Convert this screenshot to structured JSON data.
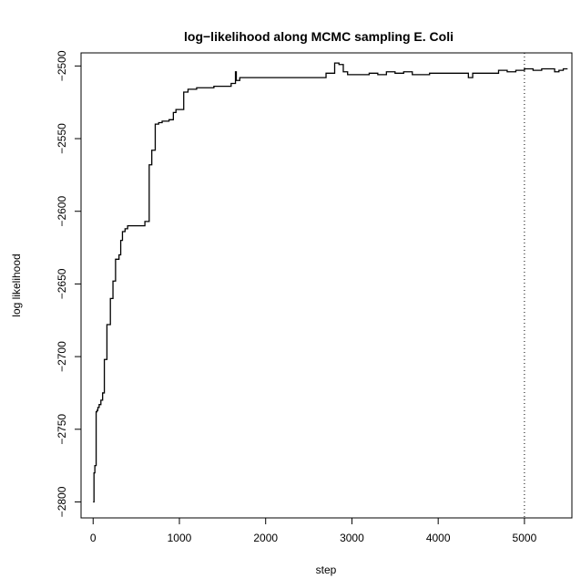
{
  "chart_data": {
    "type": "line",
    "title": "log−likelihood along MCMC sampling E. Coli",
    "xlabel": "step",
    "ylabel": "log likelihood",
    "xlim": [
      -140,
      5550
    ],
    "ylim": [
      -2811,
      -2491
    ],
    "x_ticks": [
      0,
      1000,
      2000,
      3000,
      4000,
      5000
    ],
    "x_tick_labels": [
      "0",
      "1000",
      "2000",
      "3000",
      "4000",
      "5000"
    ],
    "y_ticks": [
      -2500,
      -2550,
      -2600,
      -2650,
      -2700,
      -2750,
      -2800
    ],
    "y_tick_labels": [
      "−2500",
      "−2550",
      "−2600",
      "−2650",
      "−2700",
      "−2750",
      "−2800"
    ],
    "grid": false,
    "step_line": true,
    "reference_lines": [
      {
        "axis": "x",
        "value": 5000,
        "style": "dotted"
      }
    ],
    "series": [
      {
        "x": [
          0,
          10,
          20,
          35,
          45,
          55,
          70,
          90,
          110,
          130,
          160,
          200,
          230,
          260,
          300,
          320,
          340,
          370,
          400,
          500,
          600,
          650,
          680,
          700,
          720,
          760,
          800,
          880,
          930,
          960,
          1000,
          1050,
          1100,
          1200,
          1300,
          1400,
          1500,
          1600,
          1650,
          1660,
          1680,
          1700,
          1800,
          1900,
          2000,
          2200,
          2400,
          2600,
          2700,
          2800,
          2850,
          2900,
          2950,
          3000,
          3200,
          3300,
          3400,
          3500,
          3600,
          3700,
          3800,
          3900,
          4000,
          4100,
          4200,
          4300,
          4350,
          4400,
          4600,
          4700,
          4800,
          4900,
          5000,
          5050,
          5100,
          5200,
          5300,
          5350,
          5400,
          5450,
          5500
        ],
        "y": [
          -2800,
          -2780,
          -2775,
          -2738,
          -2737,
          -2735,
          -2733,
          -2730,
          -2725,
          -2702,
          -2678,
          -2660,
          -2648,
          -2633,
          -2630,
          -2620,
          -2614,
          -2612,
          -2610,
          -2610,
          -2607,
          -2568,
          -2558,
          -2558,
          -2540,
          -2539,
          -2538,
          -2537,
          -2532,
          -2530,
          -2530,
          -2518,
          -2516,
          -2515,
          -2515,
          -2514,
          -2514,
          -2512,
          -2504,
          -2510,
          -2510,
          -2508,
          -2508,
          -2508,
          -2508,
          -2508,
          -2508,
          -2508,
          -2505,
          -2498,
          -2499,
          -2504,
          -2506,
          -2506,
          -2505,
          -2506,
          -2504,
          -2505,
          -2504,
          -2506,
          -2506,
          -2505,
          -2505,
          -2505,
          -2505,
          -2505,
          -2508,
          -2505,
          -2505,
          -2503,
          -2504,
          -2503,
          -2502,
          -2502,
          -2503,
          -2502,
          -2502,
          -2504,
          -2503,
          -2502,
          -2502
        ]
      }
    ]
  }
}
